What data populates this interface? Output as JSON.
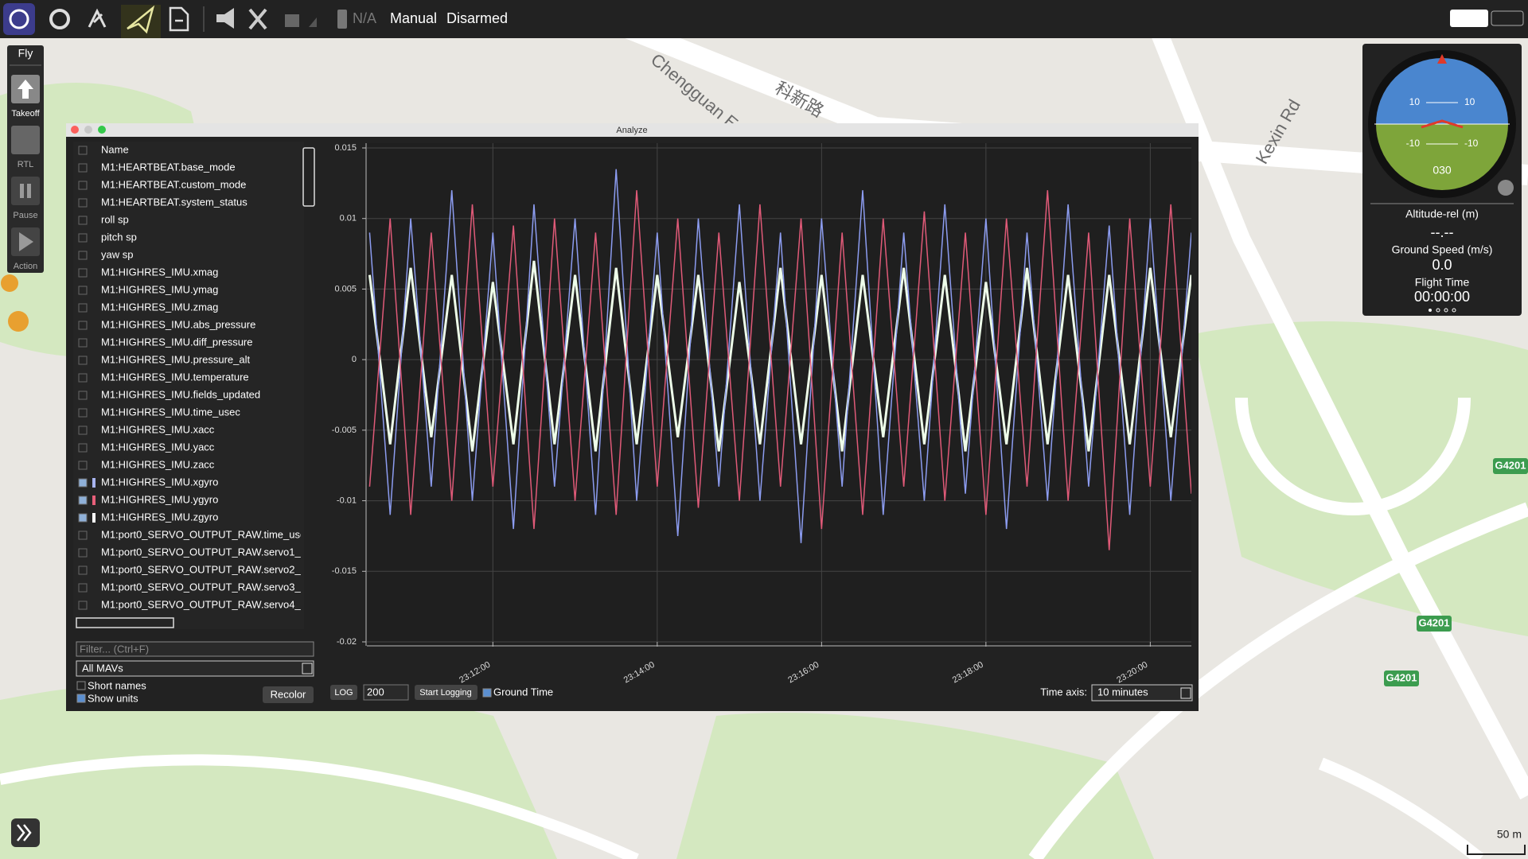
{
  "toolbar": {
    "battery": "N/A",
    "flight_mode": "Manual",
    "arm_state": "Disarmed"
  },
  "fly_tools": {
    "title": "Fly",
    "buttons": [
      "Takeoff",
      "RTL",
      "Pause",
      "Action"
    ]
  },
  "map": {
    "labels": [
      "Chengguan Expy",
      "科新路",
      "Kexin Rd"
    ],
    "road_shields": [
      "G4201",
      "G4201",
      "G4201"
    ],
    "scale": "50 m"
  },
  "instrument": {
    "pitch_labels": [
      "10",
      "10",
      "-10",
      "-10"
    ],
    "heading": "030",
    "altitude_label": "Altitude-rel (m)",
    "altitude": "--.--",
    "speed_label": "Ground Speed (m/s)",
    "speed": "0.0",
    "time_label": "Flight Time",
    "time": "00:00:00"
  },
  "analyze": {
    "title": "Analyze",
    "list": {
      "header": "Name",
      "items": [
        {
          "label": "M1:HEARTBEAT.base_mode",
          "checked": false
        },
        {
          "label": "M1:HEARTBEAT.custom_mode",
          "checked": false
        },
        {
          "label": "M1:HEARTBEAT.system_status",
          "checked": false
        },
        {
          "label": "roll sp",
          "checked": false
        },
        {
          "label": "pitch sp",
          "checked": false
        },
        {
          "label": "yaw sp",
          "checked": false
        },
        {
          "label": "M1:HIGHRES_IMU.xmag",
          "checked": false
        },
        {
          "label": "M1:HIGHRES_IMU.ymag",
          "checked": false
        },
        {
          "label": "M1:HIGHRES_IMU.zmag",
          "checked": false
        },
        {
          "label": "M1:HIGHRES_IMU.abs_pressure",
          "checked": false
        },
        {
          "label": "M1:HIGHRES_IMU.diff_pressure",
          "checked": false
        },
        {
          "label": "M1:HIGHRES_IMU.pressure_alt",
          "checked": false
        },
        {
          "label": "M1:HIGHRES_IMU.temperature",
          "checked": false
        },
        {
          "label": "M1:HIGHRES_IMU.fields_updated",
          "checked": false
        },
        {
          "label": "M1:HIGHRES_IMU.time_usec",
          "checked": false
        },
        {
          "label": "M1:HIGHRES_IMU.xacc",
          "checked": false
        },
        {
          "label": "M1:HIGHRES_IMU.yacc",
          "checked": false
        },
        {
          "label": "M1:HIGHRES_IMU.zacc",
          "checked": false
        },
        {
          "label": "M1:HIGHRES_IMU.xgyro",
          "checked": true,
          "color": "#a8b4f0"
        },
        {
          "label": "M1:HIGHRES_IMU.ygyro",
          "checked": true,
          "color": "#e8607a"
        },
        {
          "label": "M1:HIGHRES_IMU.zgyro",
          "checked": true,
          "color": "#ffffff"
        },
        {
          "label": "M1:port0_SERVO_OUTPUT_RAW.time_use",
          "checked": false
        },
        {
          "label": "M1:port0_SERVO_OUTPUT_RAW.servo1_r",
          "checked": false
        },
        {
          "label": "M1:port0_SERVO_OUTPUT_RAW.servo2_r",
          "checked": false
        },
        {
          "label": "M1:port0_SERVO_OUTPUT_RAW.servo3_r",
          "checked": false
        },
        {
          "label": "M1:port0_SERVO_OUTPUT_RAW.servo4_r",
          "checked": false
        }
      ]
    },
    "filter_placeholder": "Filter... (Ctrl+F)",
    "mav_select": "All MAVs",
    "short_names": "Short names",
    "show_units": "Show units",
    "recolor": "Recolor",
    "log_button": "LOG",
    "log_rate": "200",
    "start_logging": "Start Logging",
    "ground_time": "Ground Time",
    "time_axis_label": "Time axis:",
    "time_axis": "10 minutes"
  },
  "chart_data": {
    "type": "line",
    "x": [
      "23:10:30",
      "23:10:45",
      "23:11:00",
      "23:11:15",
      "23:11:30",
      "23:11:45",
      "23:12:00",
      "23:12:15",
      "23:12:30",
      "23:12:45",
      "23:13:00",
      "23:13:15",
      "23:13:30",
      "23:13:45",
      "23:14:00",
      "23:14:15",
      "23:14:30",
      "23:14:45",
      "23:15:00",
      "23:15:15",
      "23:15:30",
      "23:15:45",
      "23:16:00",
      "23:16:15",
      "23:16:30",
      "23:16:45",
      "23:17:00",
      "23:17:15",
      "23:17:30",
      "23:17:45",
      "23:18:00",
      "23:18:15",
      "23:18:30",
      "23:18:45",
      "23:19:00",
      "23:19:15",
      "23:19:30",
      "23:19:45",
      "23:20:00",
      "23:20:15",
      "23:20:30"
    ],
    "xlim": [
      "23:10:28",
      "23:20:30"
    ],
    "xticks": [
      "23:12:00",
      "23:14:00",
      "23:16:00",
      "23:18:00",
      "23:20:00"
    ],
    "ylim": [
      -0.02,
      0.015
    ],
    "yticks": [
      0.015,
      0.01,
      0.005,
      0,
      -0.005,
      -0.01,
      -0.015,
      -0.02
    ],
    "grid": true,
    "series": [
      {
        "color": "#eefeea",
        "values": [
          0.006,
          -0.006,
          0.0065,
          -0.0055,
          0.006,
          -0.0065,
          0.0055,
          -0.006,
          0.007,
          -0.006,
          0.006,
          -0.0065,
          0.0065,
          -0.006,
          0.006,
          -0.0055,
          0.006,
          -0.0065,
          0.0055,
          -0.006,
          0.0065,
          -0.006,
          0.006,
          -0.0065,
          0.006,
          -0.0055,
          0.0065,
          -0.006,
          0.006,
          -0.0065,
          0.0055,
          -0.006,
          0.0065,
          -0.006,
          0.006,
          -0.0065,
          0.006,
          -0.006,
          0.0065,
          -0.0055,
          0.006
        ]
      },
      {
        "color": "#8c9cf0",
        "values": [
          0.009,
          -0.011,
          0.01,
          -0.009,
          0.012,
          -0.01,
          0.009,
          -0.012,
          0.011,
          -0.009,
          0.01,
          -0.011,
          0.0135,
          -0.01,
          0.009,
          -0.0125,
          0.01,
          -0.009,
          0.011,
          -0.01,
          0.009,
          -0.013,
          0.01,
          -0.009,
          0.012,
          -0.011,
          0.009,
          -0.01,
          0.011,
          -0.0095,
          0.01,
          -0.012,
          0.009,
          -0.01,
          0.011,
          -0.009,
          0.0095,
          -0.011,
          0.01,
          -0.01,
          0.009
        ]
      },
      {
        "color": "#e05a78",
        "values": [
          -0.009,
          0.01,
          -0.011,
          0.009,
          -0.01,
          0.011,
          -0.009,
          0.0095,
          -0.012,
          0.01,
          -0.01,
          0.009,
          -0.011,
          0.012,
          -0.009,
          0.01,
          -0.0105,
          0.009,
          -0.01,
          0.011,
          -0.009,
          0.01,
          -0.012,
          0.009,
          -0.011,
          0.01,
          -0.009,
          0.0105,
          -0.01,
          0.009,
          -0.011,
          0.01,
          -0.009,
          0.012,
          -0.01,
          0.009,
          -0.0135,
          0.01,
          -0.009,
          0.011,
          -0.0095
        ]
      }
    ]
  }
}
